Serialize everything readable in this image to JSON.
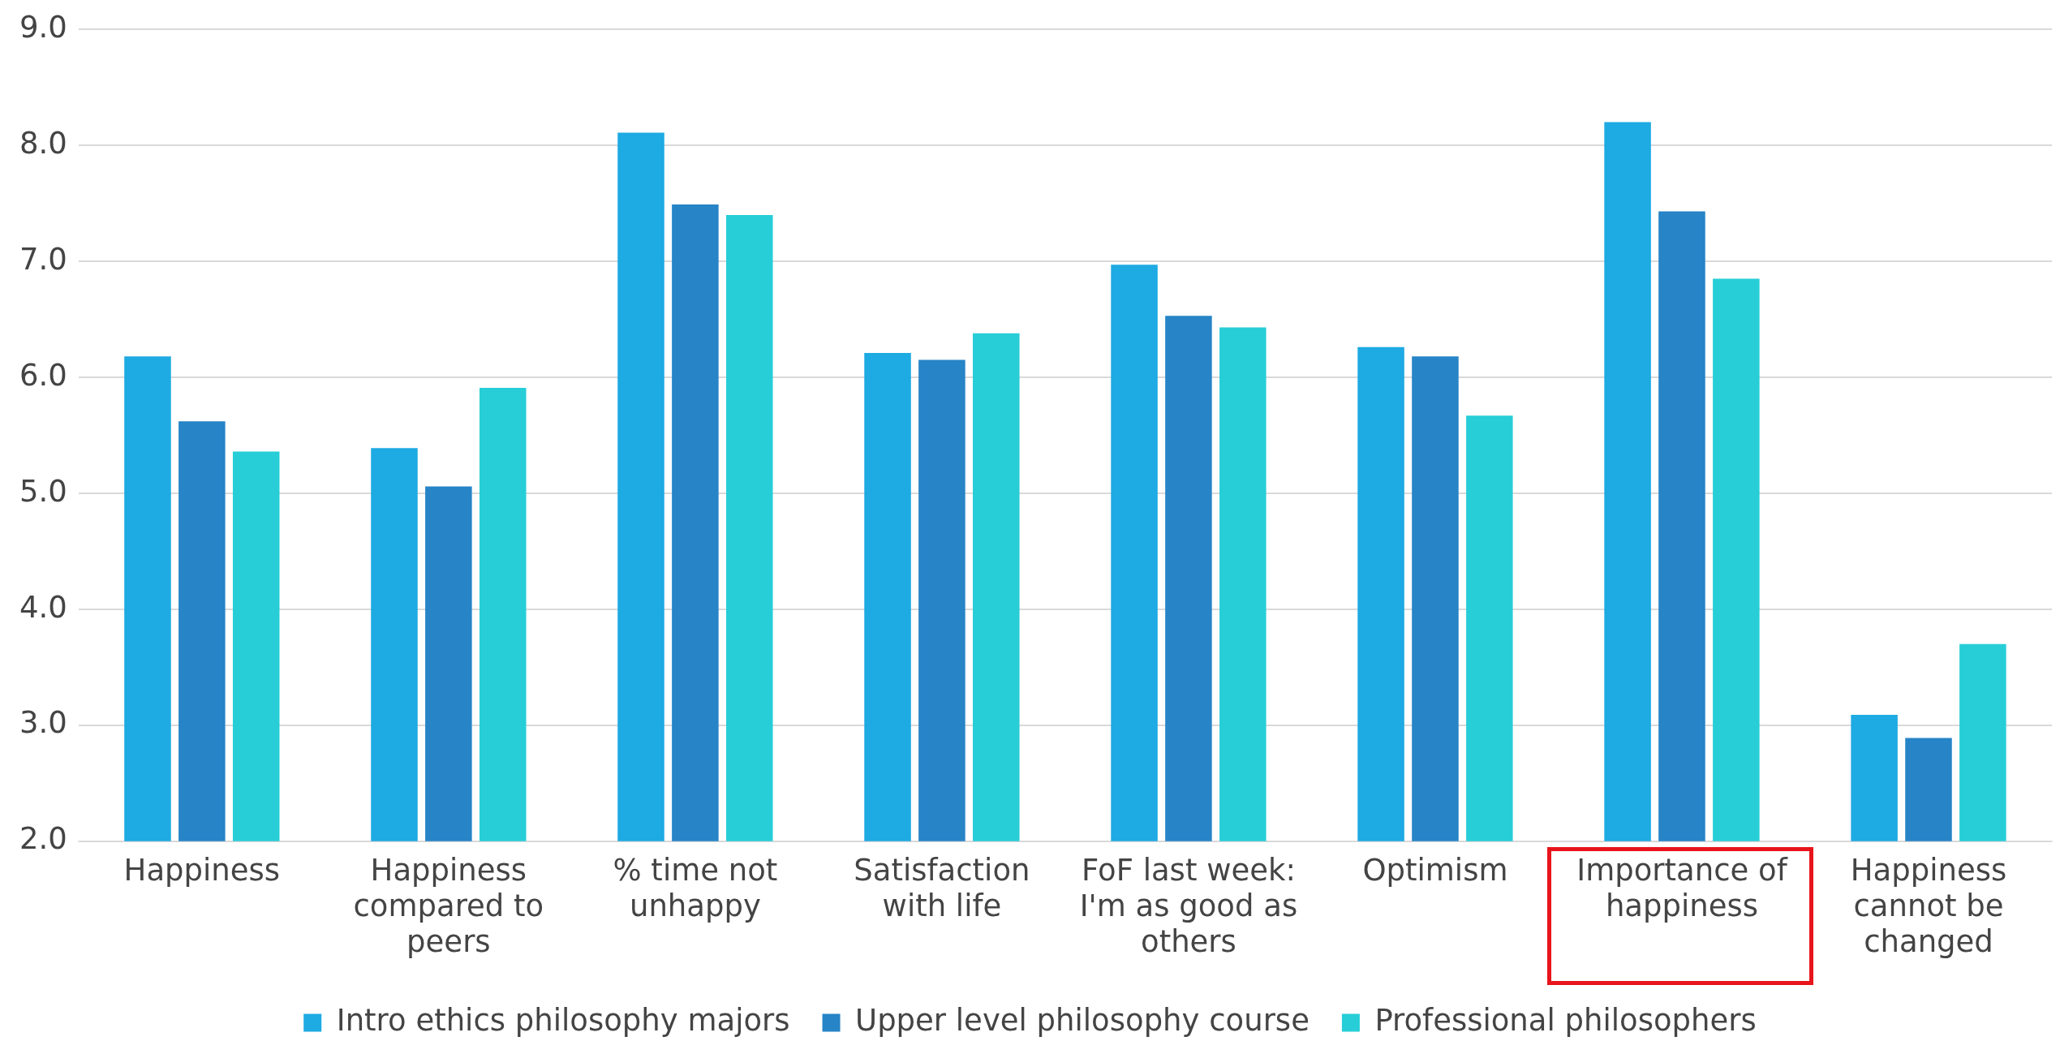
{
  "chart_data": {
    "type": "bar",
    "categories": [
      "Happiness",
      "Happiness compared to peers",
      "% time not unhappy",
      "Satisfaction with life",
      "FoF last week: I'm as good as others",
      "Optimism",
      "Importance of happiness",
      "Happiness cannot be changed"
    ],
    "series": [
      {
        "name": "Intro ethics philosophy majors",
        "color": "#1eaae2",
        "values": [
          6.18,
          5.39,
          8.11,
          6.21,
          6.97,
          6.26,
          8.2,
          3.09
        ]
      },
      {
        "name": "Upper level philosophy course",
        "color": "#2684c7",
        "values": [
          5.62,
          5.06,
          7.49,
          6.15,
          6.53,
          6.18,
          7.43,
          2.89
        ]
      },
      {
        "name": "Professional philosophers",
        "color": "#27ced7",
        "values": [
          5.36,
          5.91,
          7.4,
          6.38,
          6.43,
          5.67,
          6.85,
          3.7
        ]
      }
    ],
    "ylim": [
      2,
      9
    ],
    "yticks": [
      {
        "value": 2,
        "label": "2.0"
      },
      {
        "value": 3,
        "label": "3.0"
      },
      {
        "value": 4,
        "label": "4.0"
      },
      {
        "value": 5,
        "label": "5.0"
      },
      {
        "value": 6,
        "label": "6.0"
      },
      {
        "value": 7,
        "label": "7.0"
      },
      {
        "value": 8,
        "label": "8.0"
      },
      {
        "value": 9,
        "label": "9.0"
      }
    ],
    "grid": "y",
    "legend": "bottom"
  }
}
